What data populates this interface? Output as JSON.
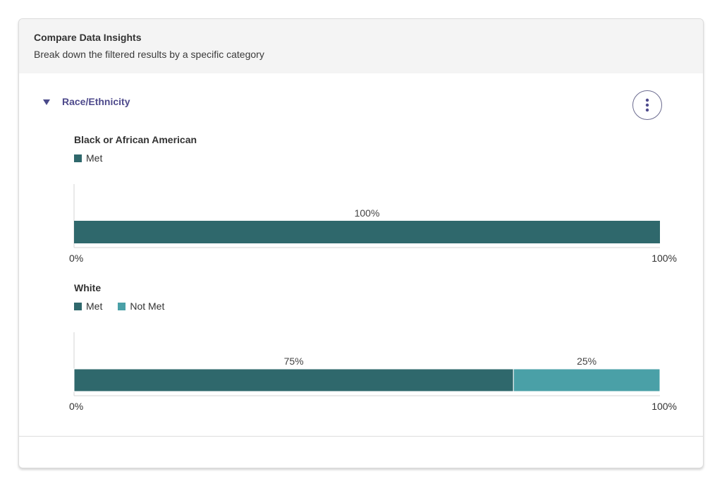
{
  "header": {
    "title": "Compare Data Insights",
    "subtitle": "Break down the filtered results by a specific category"
  },
  "section": {
    "title": "Race/Ethnicity",
    "menu_icon": "kebab-vertical-icon"
  },
  "colors": {
    "met": "#2f686c",
    "not_met": "#4aa0a7",
    "accent": "#4e4a8c"
  },
  "chart_data": [
    {
      "type": "bar",
      "title": "Black or African American",
      "orientation": "horizontal-stacked",
      "legend": [
        "Met"
      ],
      "series": [
        {
          "name": "Met",
          "values": [
            100
          ]
        }
      ],
      "data_labels": [
        "100%"
      ],
      "xlim": [
        0,
        100
      ],
      "xticks": [
        "0%",
        "100%"
      ],
      "grid": false
    },
    {
      "type": "bar",
      "title": "White",
      "orientation": "horizontal-stacked",
      "legend": [
        "Met",
        "Not Met"
      ],
      "series": [
        {
          "name": "Met",
          "values": [
            75
          ]
        },
        {
          "name": "Not Met",
          "values": [
            25
          ]
        }
      ],
      "data_labels": [
        "75%",
        "25%"
      ],
      "xlim": [
        0,
        100
      ],
      "xticks": [
        "0%",
        "100%"
      ],
      "grid": false
    }
  ]
}
